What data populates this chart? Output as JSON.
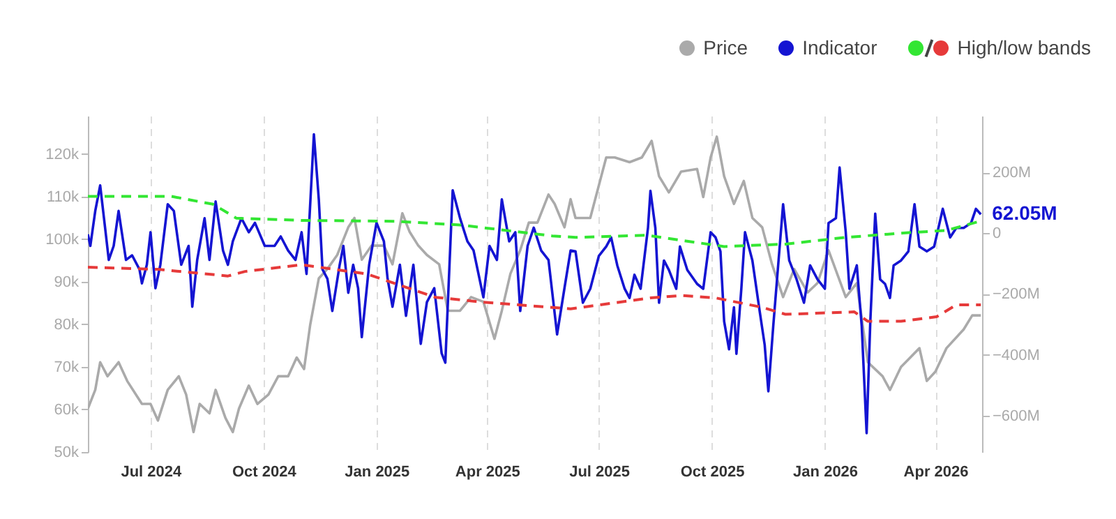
{
  "chart_data": {
    "type": "line",
    "xlim": [
      "2024-05-11",
      "2026-05-09"
    ],
    "xticks": [
      {
        "value": "2024-07-01",
        "label": "Jul 2024"
      },
      {
        "value": "2024-10-01",
        "label": "Oct 2024"
      },
      {
        "value": "2025-01-01",
        "label": "Jan 2025"
      },
      {
        "value": "2025-04-01",
        "label": "Apr 2025"
      },
      {
        "value": "2025-07-01",
        "label": "Jul 2025"
      },
      {
        "value": "2025-10-01",
        "label": "Oct 2025"
      },
      {
        "value": "2026-01-01",
        "label": "Jan 2026"
      },
      {
        "value": "2026-04-01",
        "label": "Apr 2026"
      }
    ],
    "ylim": [
      50000,
      129000
    ],
    "yticks": [
      {
        "value": 50000,
        "label": "50k"
      },
      {
        "value": 60000,
        "label": "60k"
      },
      {
        "value": 70000,
        "label": "70k"
      },
      {
        "value": 80000,
        "label": "80k"
      },
      {
        "value": 90000,
        "label": "90k"
      },
      {
        "value": 100000,
        "label": "100k"
      },
      {
        "value": 110000,
        "label": "110k"
      },
      {
        "value": 120000,
        "label": "120k"
      }
    ],
    "y2lim": [
      -720,
      386
    ],
    "y2ticks": [
      {
        "value": 200,
        "label": "200M"
      },
      {
        "value": 0,
        "label": "0"
      },
      {
        "value": -200,
        "label": "−200M"
      },
      {
        "value": -400,
        "label": "−400M"
      },
      {
        "value": -600,
        "label": "−600M"
      }
    ],
    "grid": "x",
    "legend": "top right",
    "annotations": [
      "62.05M"
    ],
    "series": [
      {
        "name": "Price",
        "color": "#aaaaaa",
        "x": [
          "2024-05-11",
          "2024-05-17",
          "2024-05-21",
          "2024-05-27",
          "2024-06-05",
          "2024-06-12",
          "2024-06-24",
          "2024-07-01",
          "2024-07-07",
          "2024-07-15",
          "2024-07-24",
          "2024-07-30",
          "2024-08-05",
          "2024-08-10",
          "2024-08-18",
          "2024-08-23",
          "2024-08-31",
          "2024-09-06",
          "2024-09-11",
          "2024-09-19",
          "2024-09-26",
          "2024-10-05",
          "2024-10-13",
          "2024-10-21",
          "2024-10-28",
          "2024-11-03",
          "2024-11-08",
          "2024-11-15",
          "2024-11-22",
          "2024-11-30",
          "2024-12-09",
          "2024-12-14",
          "2024-12-20",
          "2024-12-28",
          "2025-01-07",
          "2025-01-14",
          "2025-01-22",
          "2025-01-28",
          "2025-02-04",
          "2025-02-11",
          "2025-02-21",
          "2025-02-28",
          "2025-03-10",
          "2025-03-19",
          "2025-03-29",
          "2025-04-07",
          "2025-04-13",
          "2025-04-20",
          "2025-04-28",
          "2025-05-05",
          "2025-05-12",
          "2025-05-21",
          "2025-05-26",
          "2025-06-03",
          "2025-06-08",
          "2025-06-12",
          "2025-06-24",
          "2025-07-07",
          "2025-07-14",
          "2025-07-26",
          "2025-08-05",
          "2025-08-13",
          "2025-08-19",
          "2025-08-27",
          "2025-09-06",
          "2025-09-19",
          "2025-09-24",
          "2025-09-30",
          "2025-10-05",
          "2025-10-11",
          "2025-10-19",
          "2025-10-27",
          "2025-11-03",
          "2025-11-11",
          "2025-11-19",
          "2025-11-28",
          "2025-12-07",
          "2025-12-18",
          "2025-12-26",
          "2026-01-04",
          "2026-01-18",
          "2026-01-27",
          "2026-02-05",
          "2026-02-17",
          "2026-02-23",
          "2026-03-04",
          "2026-03-19",
          "2026-03-25",
          "2026-04-01",
          "2026-04-10",
          "2026-04-24",
          "2026-05-01",
          "2026-05-08"
        ],
        "values": [
          60200,
          64600,
          71100,
          67800,
          71100,
          66700,
          61300,
          61300,
          57400,
          64600,
          67800,
          63500,
          54700,
          61300,
          59100,
          64600,
          58000,
          54700,
          60200,
          65600,
          61300,
          63500,
          67800,
          67800,
          72200,
          69500,
          79900,
          90800,
          93000,
          96300,
          102800,
          105000,
          95200,
          98500,
          98500,
          94100,
          106100,
          101700,
          98500,
          96300,
          94100,
          83200,
          83200,
          86400,
          85300,
          76600,
          83200,
          91900,
          97400,
          103900,
          103900,
          110500,
          108300,
          102800,
          109400,
          105000,
          105000,
          119200,
          119200,
          118100,
          119200,
          123100,
          114800,
          111000,
          115900,
          116500,
          109900,
          119200,
          124100,
          114800,
          108300,
          113700,
          105000,
          102800,
          94100,
          86400,
          93000,
          87500,
          89700,
          97400,
          86400,
          89700,
          71100,
          67800,
          64600,
          70000,
          74400,
          66700,
          68900,
          74400,
          78800,
          82100,
          82100
        ]
      },
      {
        "name": "Indicator",
        "color": "#1414d2",
        "axis": "y2",
        "x": [
          "2024-05-11",
          "2024-05-13",
          "2024-05-17",
          "2024-05-21",
          "2024-05-25",
          "2024-05-28",
          "2024-06-01",
          "2024-06-05",
          "2024-06-11",
          "2024-06-16",
          "2024-06-22",
          "2024-06-24",
          "2024-06-28",
          "2024-07-01",
          "2024-07-05",
          "2024-07-09",
          "2024-07-15",
          "2024-07-20",
          "2024-07-26",
          "2024-08-01",
          "2024-08-04",
          "2024-08-08",
          "2024-08-14",
          "2024-08-18",
          "2024-08-23",
          "2024-08-29",
          "2024-09-02",
          "2024-09-06",
          "2024-09-13",
          "2024-09-19",
          "2024-09-24",
          "2024-10-02",
          "2024-10-10",
          "2024-10-15",
          "2024-10-21",
          "2024-10-27",
          "2024-11-01",
          "2024-11-05",
          "2024-11-11",
          "2024-11-15",
          "2024-11-18",
          "2024-11-22",
          "2024-11-26",
          "2024-12-02",
          "2024-12-05",
          "2024-12-09",
          "2024-12-13",
          "2024-12-17",
          "2024-12-20",
          "2024-12-26",
          "2025-01-01",
          "2025-01-07",
          "2025-01-10",
          "2025-01-14",
          "2025-01-20",
          "2025-01-25",
          "2025-01-31",
          "2025-02-06",
          "2025-02-11",
          "2025-02-17",
          "2025-02-23",
          "2025-02-26",
          "2025-03-04",
          "2025-03-10",
          "2025-03-16",
          "2025-03-21",
          "2025-03-29",
          "2025-04-03",
          "2025-04-09",
          "2025-04-13",
          "2025-04-19",
          "2025-04-24",
          "2025-04-28",
          "2025-05-04",
          "2025-05-09",
          "2025-05-15",
          "2025-05-21",
          "2025-05-28",
          "2025-06-03",
          "2025-06-08",
          "2025-06-12",
          "2025-06-18",
          "2025-06-24",
          "2025-07-01",
          "2025-07-07",
          "2025-07-11",
          "2025-07-16",
          "2025-07-22",
          "2025-07-26",
          "2025-07-30",
          "2025-08-04",
          "2025-08-10",
          "2025-08-12",
          "2025-08-16",
          "2025-08-19",
          "2025-08-23",
          "2025-08-27",
          "2025-09-02",
          "2025-09-05",
          "2025-09-11",
          "2025-09-19",
          "2025-09-24",
          "2025-09-30",
          "2025-10-04",
          "2025-10-08",
          "2025-10-11",
          "2025-10-15",
          "2025-10-19",
          "2025-10-21",
          "2025-10-25",
          "2025-10-28",
          "2025-11-03",
          "2025-11-09",
          "2025-11-13",
          "2025-11-16",
          "2025-11-20",
          "2025-11-28",
          "2025-12-03",
          "2025-12-09",
          "2025-12-15",
          "2025-12-20",
          "2025-12-26",
          "2026-01-01",
          "2026-01-04",
          "2026-01-10",
          "2026-01-13",
          "2026-01-18",
          "2026-01-21",
          "2026-01-27",
          "2026-01-31",
          "2026-02-04",
          "2026-02-07",
          "2026-02-11",
          "2026-02-15",
          "2026-02-19",
          "2026-02-23",
          "2026-02-26",
          "2026-03-04",
          "2026-03-10",
          "2026-03-15",
          "2026-03-19",
          "2026-03-25",
          "2026-03-31",
          "2026-04-07",
          "2026-04-13",
          "2026-04-18",
          "2026-04-24",
          "2026-04-30",
          "2026-05-04",
          "2026-05-08"
        ],
        "values": [
          -4,
          -42,
          73,
          157,
          18,
          -88,
          -42,
          73,
          -88,
          -73,
          -119,
          -165,
          -104,
          3,
          -181,
          -104,
          95,
          73,
          -104,
          -42,
          -242,
          -88,
          49,
          -88,
          104,
          -57,
          -104,
          -27,
          49,
          3,
          34,
          -42,
          -42,
          -11,
          -57,
          -88,
          3,
          -134,
          325,
          111,
          -119,
          -150,
          -256,
          -104,
          -42,
          -196,
          -104,
          -181,
          -342,
          -104,
          34,
          -27,
          -150,
          -242,
          -104,
          -272,
          -104,
          -364,
          -227,
          -181,
          -395,
          -426,
          141,
          49,
          -27,
          -57,
          -211,
          -42,
          -88,
          111,
          -27,
          3,
          -256,
          -42,
          18,
          -57,
          -88,
          -333,
          -181,
          -57,
          -60,
          -229,
          -183,
          -75,
          -44,
          -14,
          -106,
          -183,
          -213,
          -137,
          -183,
          17,
          139,
          17,
          -229,
          -90,
          -121,
          -183,
          -44,
          -121,
          -167,
          -183,
          3,
          -14,
          -60,
          -290,
          -382,
          -244,
          -397,
          -183,
          3,
          -90,
          -259,
          -367,
          -520,
          -305,
          95,
          -90,
          -152,
          -229,
          -106,
          -152,
          -183,
          33,
          49,
          216,
          3,
          -183,
          -106,
          -305,
          -658,
          -290,
          64,
          -152,
          -167,
          -213,
          -106,
          -90,
          -60,
          95,
          -44,
          -60,
          -44,
          80,
          -14,
          17,
          17,
          33,
          80,
          62.05
        ]
      },
      {
        "color": "#33e633",
        "axis": "y2",
        "line_style": "dashed",
        "x": [
          "2024-05-11",
          "2024-07-18",
          "2024-08-21",
          "2024-09-09",
          "2024-11-01",
          "2025-01-16",
          "2025-03-10",
          "2025-05-24",
          "2025-06-12",
          "2025-08-09",
          "2025-10-11",
          "2025-11-30",
          "2026-01-18",
          "2026-03-04",
          "2026-04-10",
          "2026-05-08"
        ],
        "values": [
          121,
          121,
          95,
          49,
          42,
          39,
          27,
          -9,
          -14,
          -7,
          -44,
          -36,
          -14,
          0,
          9,
          40
        ]
      },
      {
        "name": "High/low bands",
        "color": "#e63a3a",
        "axis": "y2",
        "line_style": "dashed",
        "x": [
          "2024-05-11",
          "2024-07-07",
          "2024-09-02",
          "2024-09-16",
          "2024-11-01",
          "2024-12-24",
          "2025-02-18",
          "2025-03-29",
          "2025-06-08",
          "2025-08-12",
          "2025-09-07",
          "2025-10-04",
          "2025-11-11",
          "2025-11-30",
          "2026-01-25",
          "2026-02-05",
          "2026-03-04",
          "2026-04-02",
          "2026-04-18",
          "2026-05-08"
        ],
        "values": [
          -112,
          -119,
          -141,
          -126,
          -104,
          -134,
          -211,
          -227,
          -249,
          -213,
          -205,
          -213,
          -244,
          -267,
          -259,
          -290,
          -290,
          -275,
          -236,
          -236
        ]
      }
    ]
  }
}
